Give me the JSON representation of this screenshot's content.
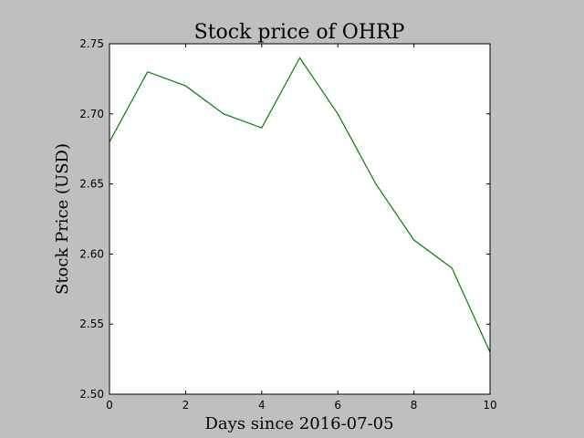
{
  "chart_data": {
    "type": "line",
    "title": "Stock price of OHRP",
    "xlabel": "Days since 2016-07-05",
    "ylabel": "Stock Price (USD)",
    "xlim": [
      0,
      10
    ],
    "ylim": [
      2.5,
      2.75
    ],
    "xticks": [
      "0",
      "2",
      "4",
      "6",
      "8",
      "10"
    ],
    "yticks": [
      "2.50",
      "2.55",
      "2.60",
      "2.65",
      "2.70",
      "2.75"
    ],
    "grid": false,
    "legend": "none",
    "series": [
      {
        "color": "#008000",
        "x": [
          0,
          1,
          2,
          3,
          4,
          5,
          6,
          7,
          8,
          9,
          10
        ],
        "y": [
          2.68,
          2.73,
          2.72,
          2.7,
          2.69,
          2.74,
          2.7,
          2.65,
          2.61,
          2.59,
          2.53
        ]
      }
    ]
  }
}
